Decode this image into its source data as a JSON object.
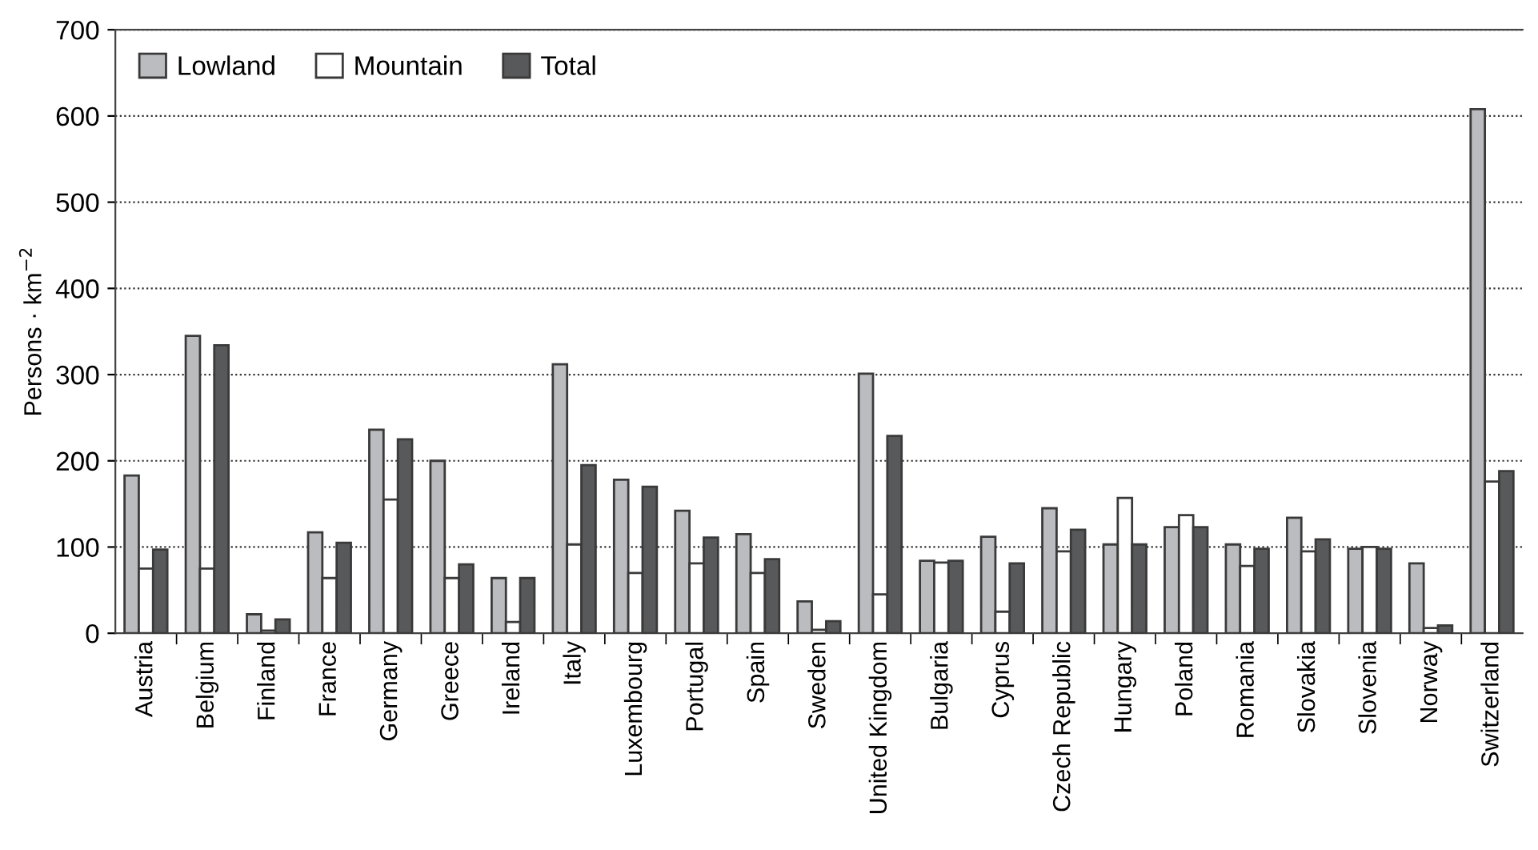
{
  "chart_data": {
    "type": "bar",
    "ylabel": "Persons · km$^{−2}$",
    "categories": [
      "Austria",
      "Belgium",
      "Finland",
      "France",
      "Germany",
      "Greece",
      "Ireland",
      "Italy",
      "Luxembourg",
      "Portugal",
      "Spain",
      "Sweden",
      "United Kingdom",
      "Bulgaria",
      "Cyprus",
      "Czech Republic",
      "Hungary",
      "Poland",
      "Romania",
      "Slovakia",
      "Slovenia",
      "Norway",
      "Switzerland"
    ],
    "series": [
      {
        "name": "Lowland",
        "color": "#bbbcc0",
        "values": [
          183,
          345,
          22,
          117,
          236,
          200,
          64,
          312,
          178,
          142,
          115,
          37,
          301,
          84,
          112,
          145,
          103,
          123,
          103,
          134,
          98,
          81,
          608
        ]
      },
      {
        "name": "Mountain",
        "color": "#ffffff",
        "values": [
          75,
          75,
          3,
          64,
          155,
          64,
          13,
          103,
          70,
          81,
          70,
          4,
          45,
          82,
          25,
          95,
          157,
          137,
          78,
          95,
          100,
          6,
          176
        ]
      },
      {
        "name": "Total",
        "color": "#58595b",
        "values": [
          97,
          334,
          16,
          105,
          225,
          80,
          64,
          195,
          170,
          111,
          86,
          14,
          229,
          84,
          81,
          120,
          103,
          123,
          98,
          109,
          98,
          9,
          188
        ]
      }
    ],
    "ylim": [
      0,
      700
    ],
    "yticks": [
      0,
      100,
      200,
      300,
      400,
      500,
      600,
      700
    ],
    "grid": "y",
    "legend": "top left"
  }
}
